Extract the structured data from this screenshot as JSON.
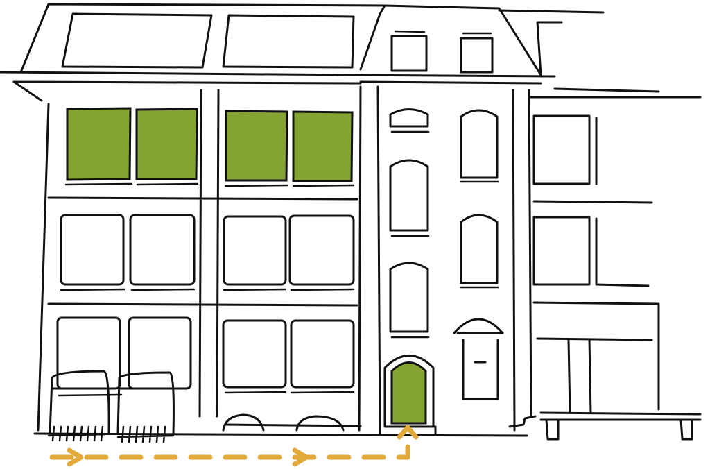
{
  "colors": {
    "highlight": "#85a332",
    "route": "#e2a93b",
    "stroke": "#111111"
  },
  "route": {
    "direction": "to-entrance-door",
    "style": "dashed-arrow"
  },
  "highlighted": [
    "upper-left-windows",
    "entrance-door"
  ]
}
